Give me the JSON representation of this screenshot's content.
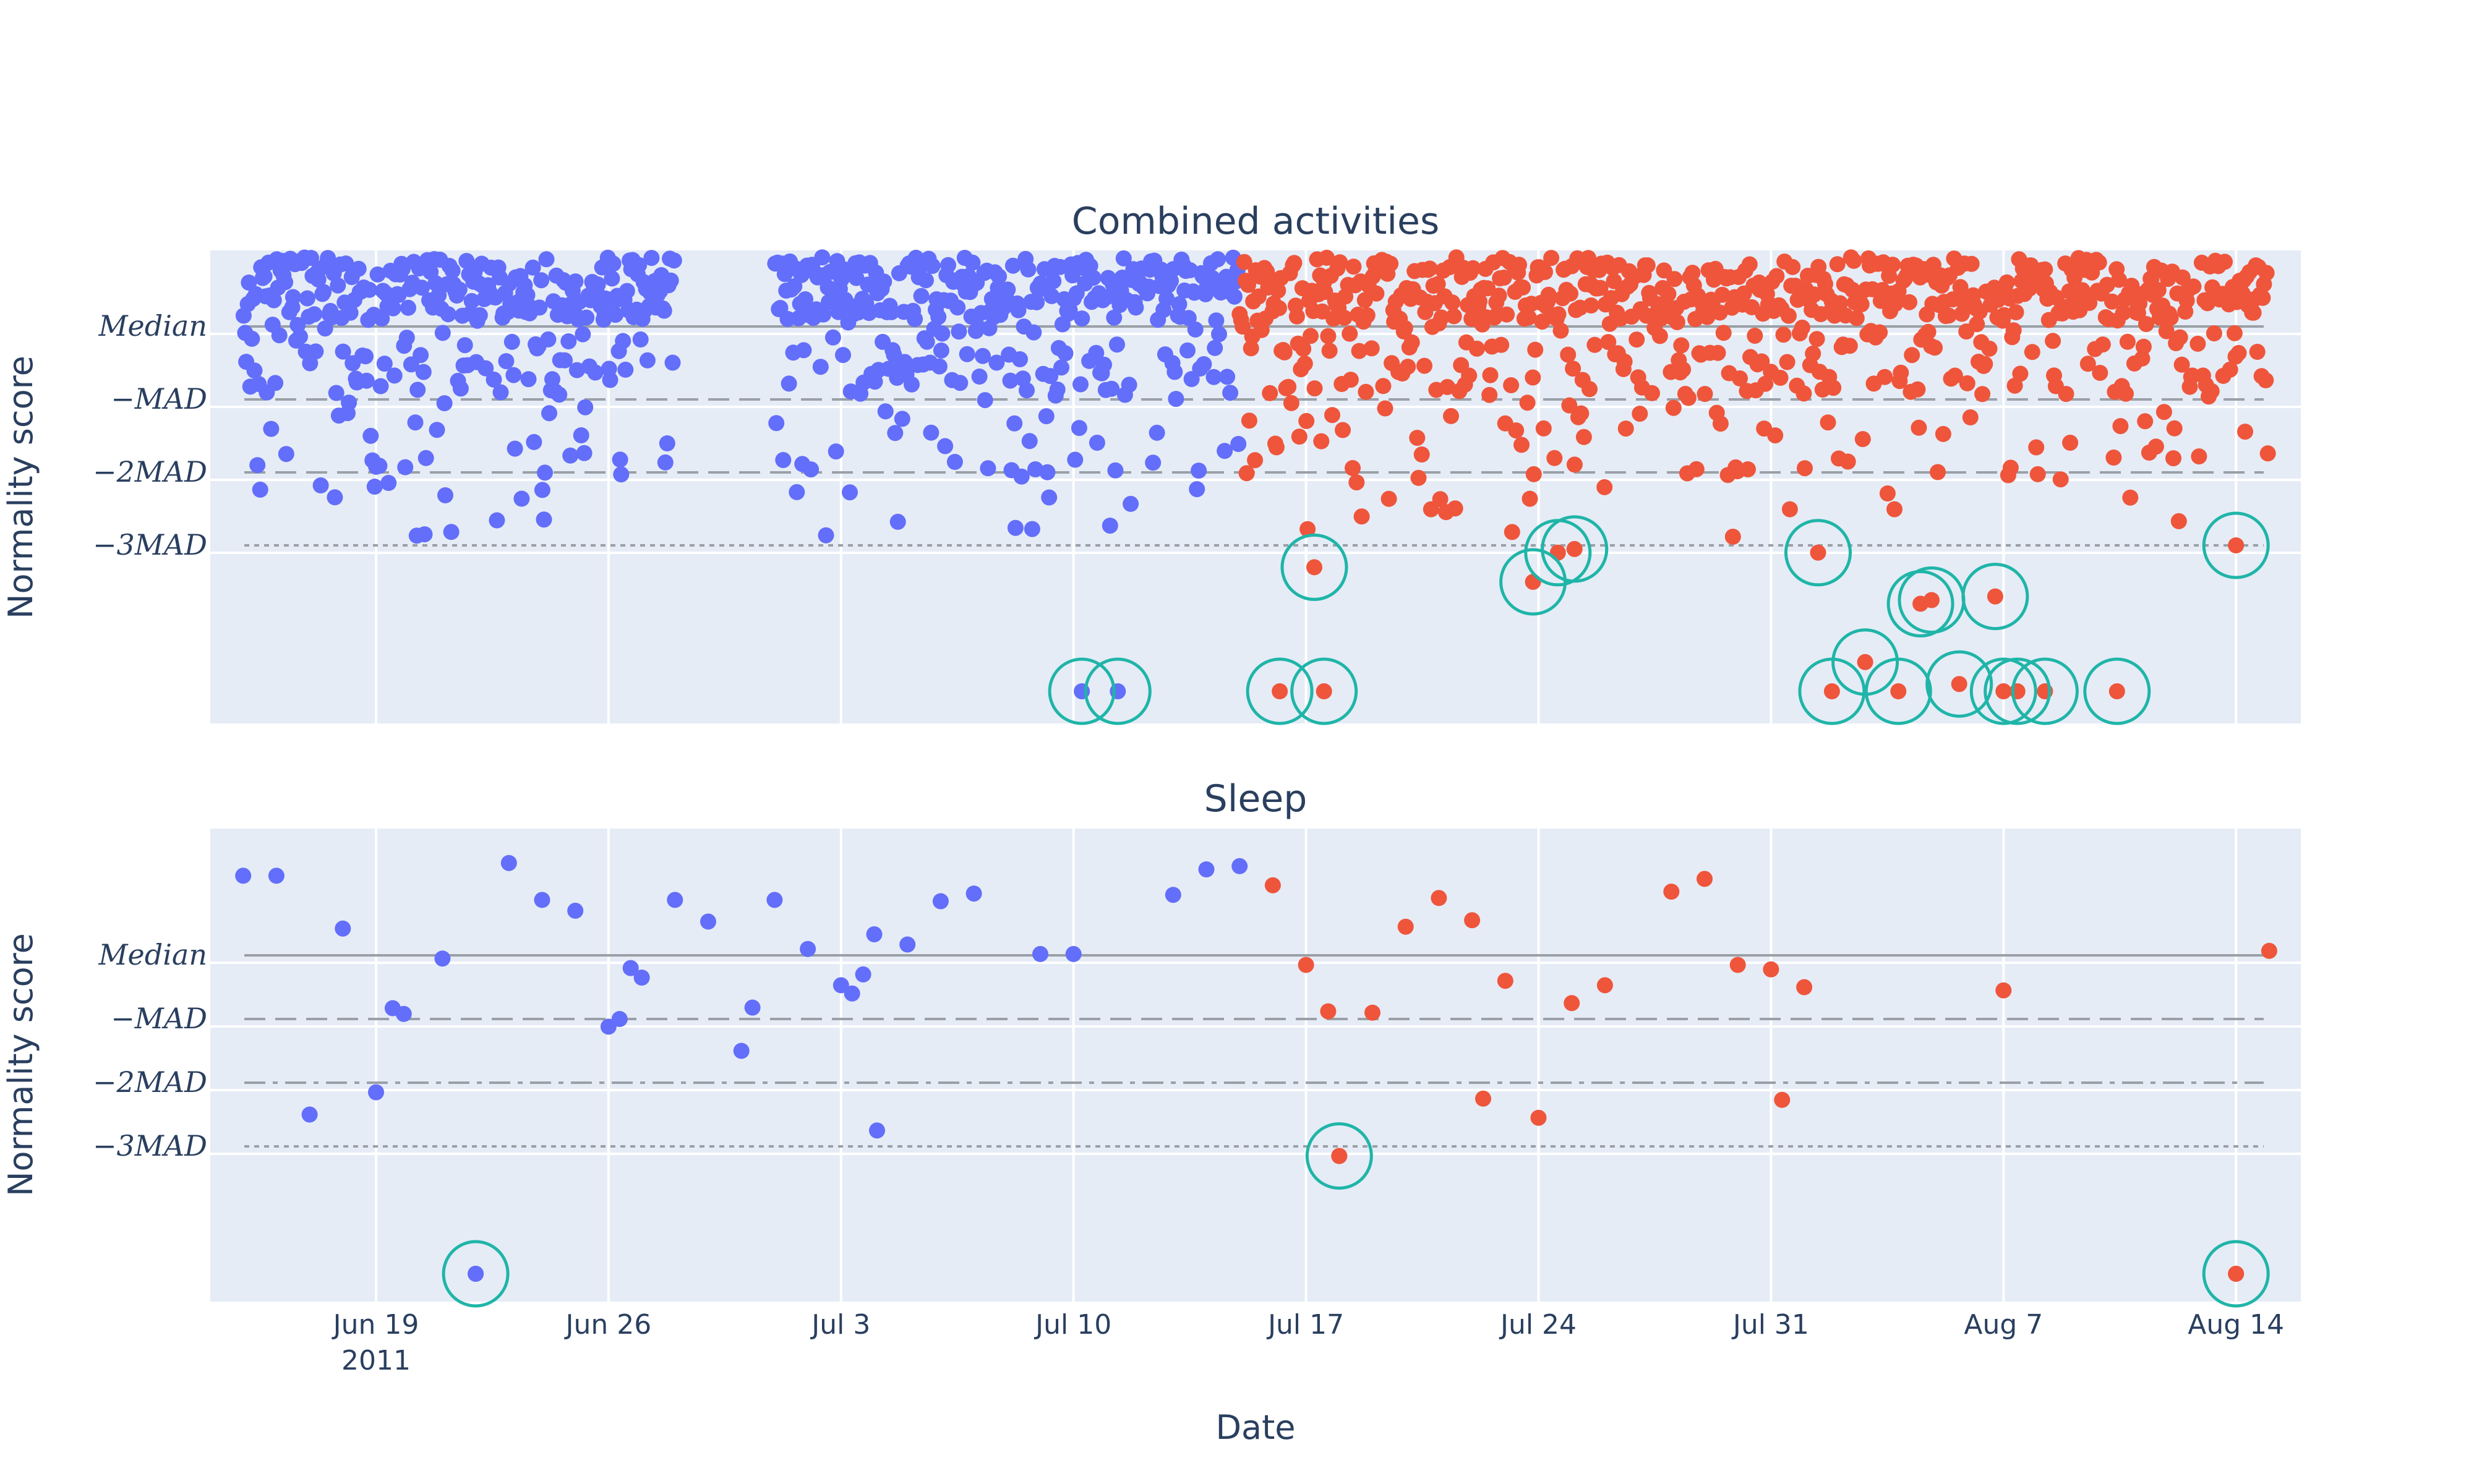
{
  "chart_data": [
    {
      "type": "scatter",
      "title": "Combined activities",
      "ylabel": "Normality score",
      "reference_lines": [
        {
          "label": "Median",
          "y": 0,
          "style": "solid",
          "color": "#9aa0a6"
        },
        {
          "label": "−MAD",
          "y": -1,
          "style": "dash",
          "color": "#9aa0a6"
        },
        {
          "label": "−2MAD",
          "y": -2,
          "style": "dash",
          "color": "#9aa0a6"
        },
        {
          "label": "−3MAD",
          "y": -3,
          "style": "dot",
          "color": "#9aa0a6"
        }
      ],
      "ylim": [
        -5.45,
        1.05
      ],
      "series": [
        {
          "color": "#636efa",
          "x_range": [
            "2011-06-15",
            "2011-07-15"
          ]
        },
        {
          "color": "#ef553b",
          "x_range": [
            "2011-07-15",
            "2011-08-15"
          ]
        }
      ],
      "anomalies": [
        {
          "x": "2011-07-10 06:00",
          "y": -5.0,
          "series": 0
        },
        {
          "x": "2011-07-11 08:00",
          "y": -5.0,
          "series": 0
        },
        {
          "x": "2011-07-16 05:00",
          "y": -5.0,
          "series": 1
        },
        {
          "x": "2011-07-17 13:00",
          "y": -5.0,
          "series": 1
        },
        {
          "x": "2011-07-17 06:00",
          "y": -3.3,
          "series": 1
        },
        {
          "x": "2011-07-23 20:00",
          "y": -3.5,
          "series": 1
        },
        {
          "x": "2011-07-24 14:00",
          "y": -3.1,
          "series": 1
        },
        {
          "x": "2011-07-25 02:00",
          "y": -3.05,
          "series": 1
        },
        {
          "x": "2011-08-01 10:00",
          "y": -3.1,
          "series": 1
        },
        {
          "x": "2011-08-01 20:00",
          "y": -5.0,
          "series": 1
        },
        {
          "x": "2011-08-02 20:00",
          "y": -4.6,
          "series": 1
        },
        {
          "x": "2011-08-03 20:00",
          "y": -5.0,
          "series": 1
        },
        {
          "x": "2011-08-04 12:00",
          "y": -3.8,
          "series": 1
        },
        {
          "x": "2011-08-04 20:00",
          "y": -3.75,
          "series": 1
        },
        {
          "x": "2011-08-05 16:00",
          "y": -4.9,
          "series": 1
        },
        {
          "x": "2011-08-06 18:00",
          "y": -3.7,
          "series": 1
        },
        {
          "x": "2011-08-07 00:00",
          "y": -5.0,
          "series": 1
        },
        {
          "x": "2011-08-07 10:00",
          "y": -5.0,
          "series": 1
        },
        {
          "x": "2011-08-08 06:00",
          "y": -5.0,
          "series": 1
        },
        {
          "x": "2011-08-10 10:00",
          "y": -5.0,
          "series": 1
        },
        {
          "x": "2011-08-14 00:00",
          "y": -3.0,
          "series": 1
        }
      ],
      "anomaly_marker_color": "#1fb5a8"
    },
    {
      "type": "scatter",
      "title": "Sleep",
      "ylabel": "Normality score",
      "xlabel": "Date",
      "reference_lines": [
        {
          "label": "Median",
          "y": 0,
          "style": "solid",
          "color": "#9aa0a6"
        },
        {
          "label": "−MAD",
          "y": -1,
          "style": "dash",
          "color": "#9aa0a6"
        },
        {
          "label": "−2MAD",
          "y": -2,
          "style": "dashdot",
          "color": "#9aa0a6"
        },
        {
          "label": "−3MAD",
          "y": -3,
          "style": "dot",
          "color": "#9aa0a6"
        }
      ],
      "ylim": [
        -5.45,
        2.0
      ],
      "x_ticks": [
        "2011-06-19",
        "2011-06-26",
        "2011-07-03",
        "2011-07-10",
        "2011-07-17",
        "2011-07-24",
        "2011-07-31",
        "2011-08-07",
        "2011-08-14"
      ],
      "x_tick_labels": [
        "Jun 19",
        "Jun 26",
        "Jul 3",
        "Jul 10",
        "Jul 17",
        "Jul 24",
        "Jul 31",
        "Aug 7",
        "Aug 14"
      ],
      "x_year_label": "2011",
      "series": [
        {
          "color": "#636efa",
          "points": [
            {
              "x": "2011-06-15",
              "y": 1.25
            },
            {
              "x": "2011-06-16",
              "y": 1.25
            },
            {
              "x": "2011-06-17",
              "y": -2.5
            },
            {
              "x": "2011-06-18",
              "y": 0.42
            },
            {
              "x": "2011-06-19",
              "y": -2.15
            },
            {
              "x": "2011-06-19 12:00",
              "y": -0.83
            },
            {
              "x": "2011-06-19 20:00",
              "y": -0.92
            },
            {
              "x": "2011-06-21",
              "y": -0.05
            },
            {
              "x": "2011-06-22",
              "y": -5.0
            },
            {
              "x": "2011-06-23",
              "y": 1.45
            },
            {
              "x": "2011-06-24",
              "y": 0.87
            },
            {
              "x": "2011-06-25",
              "y": 0.7
            },
            {
              "x": "2011-06-26",
              "y": -1.12
            },
            {
              "x": "2011-06-26 08:00",
              "y": -1.0
            },
            {
              "x": "2011-06-26 16:00",
              "y": -0.2
            },
            {
              "x": "2011-06-27",
              "y": -0.35
            },
            {
              "x": "2011-06-28",
              "y": 0.87
            },
            {
              "x": "2011-06-29",
              "y": 0.53
            },
            {
              "x": "2011-06-30",
              "y": -1.5
            },
            {
              "x": "2011-06-30 08:00",
              "y": -0.82
            },
            {
              "x": "2011-07-01",
              "y": 0.87
            },
            {
              "x": "2011-07-02",
              "y": 0.1
            },
            {
              "x": "2011-07-03",
              "y": -0.47
            },
            {
              "x": "2011-07-03 08:00",
              "y": -0.6
            },
            {
              "x": "2011-07-03 16:00",
              "y": -0.3
            },
            {
              "x": "2011-07-04 02:00",
              "y": -2.75
            },
            {
              "x": "2011-07-04",
              "y": 0.33
            },
            {
              "x": "2011-07-05",
              "y": 0.17
            },
            {
              "x": "2011-07-06",
              "y": 0.85
            },
            {
              "x": "2011-07-07",
              "y": 0.97
            },
            {
              "x": "2011-07-09",
              "y": 0.02
            },
            {
              "x": "2011-07-10",
              "y": 0.02
            },
            {
              "x": "2011-07-13",
              "y": 0.95
            },
            {
              "x": "2011-07-14",
              "y": 1.35
            },
            {
              "x": "2011-07-15",
              "y": 1.4
            }
          ]
        },
        {
          "color": "#ef553b",
          "points": [
            {
              "x": "2011-07-16",
              "y": 1.1
            },
            {
              "x": "2011-07-17",
              "y": -0.15
            },
            {
              "x": "2011-07-17 16:00",
              "y": -0.88
            },
            {
              "x": "2011-07-18",
              "y": -3.15
            },
            {
              "x": "2011-07-19",
              "y": -0.9
            },
            {
              "x": "2011-07-20",
              "y": 0.45
            },
            {
              "x": "2011-07-21",
              "y": 0.9
            },
            {
              "x": "2011-07-22",
              "y": 0.55
            },
            {
              "x": "2011-07-22 08:00",
              "y": -2.25
            },
            {
              "x": "2011-07-23",
              "y": -0.4
            },
            {
              "x": "2011-07-24",
              "y": -2.55
            },
            {
              "x": "2011-07-25",
              "y": -0.75
            },
            {
              "x": "2011-07-26",
              "y": -0.47
            },
            {
              "x": "2011-07-28",
              "y": 1.0
            },
            {
              "x": "2011-07-29",
              "y": 1.2
            },
            {
              "x": "2011-07-30",
              "y": -0.15
            },
            {
              "x": "2011-07-31",
              "y": -0.22
            },
            {
              "x": "2011-07-31 08:00",
              "y": -2.27
            },
            {
              "x": "2011-08-01",
              "y": -0.5
            },
            {
              "x": "2011-08-07",
              "y": -0.55
            },
            {
              "x": "2011-08-14",
              "y": -5.0
            },
            {
              "x": "2011-08-15",
              "y": 0.07
            }
          ]
        }
      ],
      "anomalies": [
        {
          "x": "2011-06-22",
          "y": -5.0
        },
        {
          "x": "2011-07-18",
          "y": -3.15
        },
        {
          "x": "2011-08-14",
          "y": -5.0
        }
      ],
      "anomaly_marker_color": "#1fb5a8"
    }
  ]
}
